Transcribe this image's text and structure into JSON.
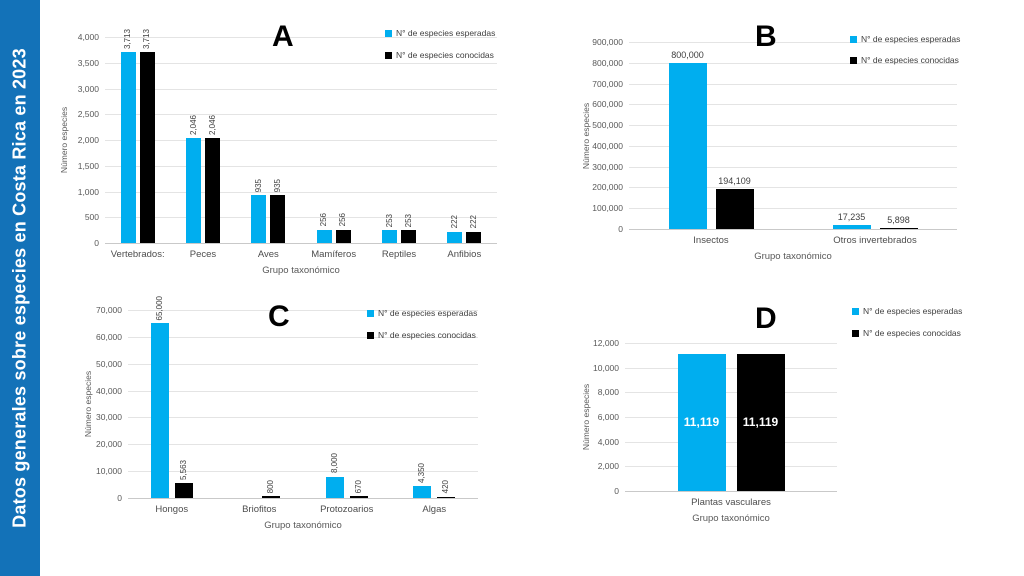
{
  "sidebar": {
    "title": "Datos generales sobre especies en Costa Rica en 2023",
    "bg_color": "#1372b8",
    "text_color": "#ffffff"
  },
  "colors": {
    "esperadas": "#00AEEF",
    "conocidas": "#000000",
    "gridline": "#e4e4e4",
    "axis_line": "#c9c9c9",
    "tick_text": "#595959",
    "category_text": "#4d4d4d",
    "value_label_text": "#404040",
    "inside_label_text": "#ffffff",
    "letter_text": "#000000"
  },
  "chart_data": [
    {
      "id": "A",
      "type": "bar",
      "title": "A",
      "xlabel": "Grupo taxonómico",
      "ylabel": "Número especies",
      "ylim": [
        0,
        4000
      ],
      "ystep": 500,
      "grid": true,
      "legend_position": "top-right",
      "categories": [
        "Vertebrados:",
        "Peces",
        "Aves",
        "Mamíferos",
        "Reptiles",
        "Anfibios"
      ],
      "series": [
        {
          "name": "N° de especies esperadas",
          "color": "#00AEEF",
          "values": [
            3713,
            2046,
            935,
            256,
            253,
            222
          ]
        },
        {
          "name": "N° de especies conocidas",
          "color": "#000000",
          "values": [
            3713,
            2046,
            935,
            256,
            253,
            222
          ]
        }
      ],
      "value_label_style": "rotated"
    },
    {
      "id": "B",
      "type": "bar",
      "title": "B",
      "xlabel": "Grupo taxonómico",
      "ylabel": "Número especies",
      "ylim": [
        0,
        900000
      ],
      "ystep": 100000,
      "grid": true,
      "legend_position": "top-right",
      "categories": [
        "Insectos",
        "Otros invertebrados"
      ],
      "series": [
        {
          "name": "N° de especies esperadas",
          "color": "#00AEEF",
          "values": [
            800000,
            17235
          ]
        },
        {
          "name": "N° de especies conocidas",
          "color": "#000000",
          "values": [
            194109,
            5898
          ]
        }
      ],
      "value_label_style": "horizontal"
    },
    {
      "id": "C",
      "type": "bar",
      "title": "C",
      "xlabel": "Grupo taxonómico",
      "ylabel": "Número especies",
      "ylim": [
        0,
        70000
      ],
      "ystep": 10000,
      "grid": true,
      "legend_position": "top-right",
      "categories": [
        "Hongos",
        "Briofitos",
        "Protozoarios",
        "Algas"
      ],
      "series": [
        {
          "name": "N° de especies esperadas",
          "color": "#00AEEF",
          "values": [
            65000,
            null,
            8000,
            4350
          ]
        },
        {
          "name": "N° de especies conocidas",
          "color": "#000000",
          "values": [
            5563,
            800,
            670,
            420
          ]
        }
      ],
      "value_label_style": "rotated"
    },
    {
      "id": "D",
      "type": "bar",
      "title": "D",
      "xlabel": "Grupo taxonómico",
      "ylabel": "Número especies",
      "ylim": [
        0,
        12000
      ],
      "ystep": 2000,
      "grid": true,
      "legend_position": "top-right",
      "categories": [
        "Plantas vasculares"
      ],
      "series": [
        {
          "name": "N° de especies esperadas",
          "color": "#00AEEF",
          "values": [
            11119
          ]
        },
        {
          "name": "N° de especies conocidas",
          "color": "#000000",
          "values": [
            11119
          ]
        }
      ],
      "value_label_style": "inside"
    }
  ]
}
